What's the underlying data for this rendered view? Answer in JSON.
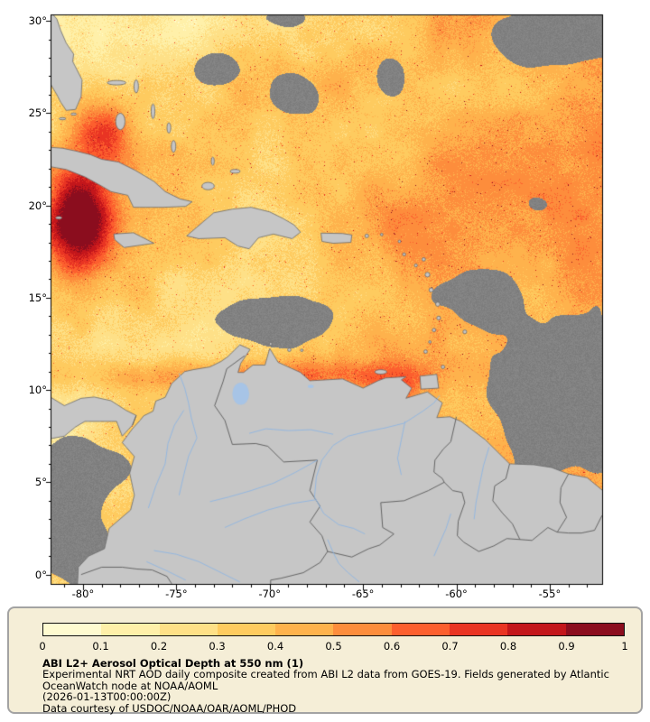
{
  "page": {
    "bg": "#ffffff"
  },
  "map": {
    "lat_ticks": [
      {
        "label": "30°",
        "value": 30
      },
      {
        "label": "25°",
        "value": 25
      },
      {
        "label": "20°",
        "value": 20
      },
      {
        "label": "15°",
        "value": 15
      },
      {
        "label": "10°",
        "value": 10
      },
      {
        "label": "5°",
        "value": 5
      },
      {
        "label": "0°",
        "value": 0
      }
    ],
    "lon_ticks": [
      {
        "label": "-80°",
        "value": -80
      },
      {
        "label": "-75°",
        "value": -75
      },
      {
        "label": "-70°",
        "value": -70
      },
      {
        "label": "-65°",
        "value": -65
      },
      {
        "label": "-60°",
        "value": -60
      },
      {
        "label": "-55°",
        "value": -55
      }
    ],
    "colors": {
      "land": "#c6c6c6",
      "coast": "#6a6a6a",
      "border": "#5a5a5a",
      "river": "#8fb6e2",
      "lake": "#a7c4e6",
      "nodata": "#828282",
      "frame": "#000000"
    }
  },
  "legend": {
    "title": "ABI L2+ Aerosol Optical Depth at 550 nm (1)",
    "description": "Experimental NRT AOD daily composite created from ABI L2 data from GOES-19. Fields generated by Atlantic OceanWatch node at NOAA/AOML",
    "timestamp": "(2026-01-13T00:00:00Z)",
    "courtesy": "Data courtesy of USDOC/NOAA/OAR/AOML/PHOD",
    "box_bg": "#f5eed7",
    "box_border": "#a3a3a3"
  },
  "chart_data": {
    "type": "heatmap",
    "title": "ABI L2+ Aerosol Optical Depth at 550 nm (1)",
    "xlabel": "",
    "ylabel": "",
    "x_range": [
      -81.7,
      -52.2
    ],
    "y_range": [
      -0.5,
      30.3
    ],
    "x_ticks": [
      -80,
      -75,
      -70,
      -65,
      -60,
      -55
    ],
    "y_ticks": [
      0,
      5,
      10,
      15,
      20,
      25,
      30
    ],
    "colorbar": {
      "range": [
        0,
        1
      ],
      "tick_labels": [
        "0",
        "0.1",
        "0.2",
        "0.3",
        "0.4",
        "0.5",
        "0.6",
        "0.7",
        "0.8",
        "0.9",
        "1"
      ],
      "colors": [
        "#fffbd0",
        "#fff0a9",
        "#fee087",
        "#fecb5f",
        "#feb24c",
        "#fd8d3c",
        "#fc5f2e",
        "#e93423",
        "#c3161b",
        "#8b0d1e"
      ]
    }
  }
}
